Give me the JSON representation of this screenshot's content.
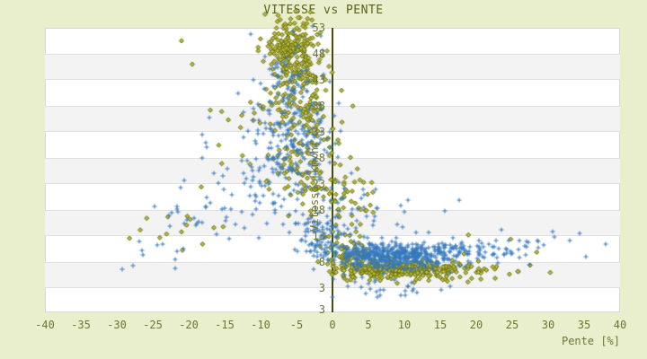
{
  "window": {
    "title": "VITESSE vs PENTE"
  },
  "chart_data": {
    "type": "scatter",
    "title": "VITESSE vs PENTE",
    "xlabel": "Pente [%]",
    "ylabel": "Vitesse [km/h]",
    "xlim": [
      -40,
      40
    ],
    "ylim": [
      -1.7,
      53
    ],
    "xticks": [
      -40,
      -35,
      -30,
      -25,
      -20,
      -15,
      -10,
      -5,
      0,
      5,
      10,
      15,
      20,
      25,
      30,
      35,
      40
    ],
    "yticks": [
      53,
      48,
      43,
      38,
      33,
      28,
      23,
      18,
      13,
      8,
      3
    ],
    "y_axis_end_label": "3",
    "grid": "alternating-horizontal-bands",
    "legend_position": "none",
    "colors": {
      "background": "#e9efcc",
      "plot_background": "#ffffff",
      "band": "#f3f3f4",
      "band_line": "#e1e1e1",
      "plot_border": "#d9d9d9",
      "axis_line": "#474d04",
      "tick_text": "#6f7433",
      "title_text": "#5c611b",
      "series_olive_stroke": "#676c06",
      "series_olive_fill": "#b7ba44",
      "series_blue": "#3579bd"
    },
    "seed": 20240613,
    "series": [
      {
        "name": "olive-diamonds",
        "marker": "diamond",
        "stroke": "#676c06",
        "fill": "#b7ba44",
        "clusters": [
          {
            "cx": -5.5,
            "cy": 49,
            "sx": 1.7,
            "sy": 2.3,
            "n": 170
          },
          {
            "cx": -5.2,
            "cy": 43.5,
            "sx": 2.2,
            "sy": 2.0,
            "n": 75
          },
          {
            "cx": -4.8,
            "cy": 37,
            "sx": 2.3,
            "sy": 2.6,
            "n": 85
          },
          {
            "cx": -4.2,
            "cy": 29.5,
            "sx": 2.6,
            "sy": 2.6,
            "n": 55
          },
          {
            "cx": -2.5,
            "cy": 23,
            "sx": 3.3,
            "sy": 2.6,
            "n": 48
          },
          {
            "cx": 2.2,
            "cy": 21,
            "sx": 2.6,
            "sy": 3.0,
            "n": 30
          },
          {
            "cx": -6,
            "cy": 55,
            "sx": 1.6,
            "sy": 1.1,
            "n": 13
          },
          {
            "cx": -12,
            "cy": 31,
            "sx": 2.8,
            "sy": 5.5,
            "n": 16
          },
          {
            "cx": 0.6,
            "cy": 12.5,
            "sx": 1.6,
            "sy": 2.4,
            "n": 26
          },
          {
            "cx": 3,
            "cy": 9,
            "sx": 2.2,
            "sy": 1.6,
            "n": 45
          },
          {
            "cx": 7,
            "cy": 6.6,
            "sx": 3.3,
            "sy": 0.9,
            "n": 240
          },
          {
            "cx": 13.5,
            "cy": 6.4,
            "sx": 3.0,
            "sy": 1.0,
            "n": 90
          },
          {
            "cx": 20,
            "cy": 6.8,
            "sx": 3.0,
            "sy": 1.2,
            "n": 28
          },
          {
            "cx": -24,
            "cy": 13.5,
            "sx": 2.2,
            "sy": 1.8,
            "n": 10
          }
        ],
        "points": [
          [
            -21,
            50.5
          ],
          [
            -19.5,
            46
          ],
          [
            -20.2,
            16.8
          ],
          [
            -19.8,
            16.2
          ],
          [
            -16.5,
            14.6
          ],
          [
            -15.2,
            14.8
          ],
          [
            25.8,
            6.2
          ],
          [
            27.5,
            7.4
          ],
          [
            30.3,
            6.0
          ],
          [
            24.8,
            12.4
          ],
          [
            18.9,
            13.2
          ],
          [
            28.4,
            9.9
          ]
        ]
      },
      {
        "name": "blue-crosses",
        "marker": "plus",
        "stroke": "#3579bd",
        "fill": "#3579bd",
        "clusters": [
          {
            "cx": -6,
            "cy": 31,
            "sx": 3.4,
            "sy": 6.8,
            "n": 240
          },
          {
            "cx": -5,
            "cy": 44.5,
            "sx": 2.2,
            "sy": 2.8,
            "n": 32
          },
          {
            "cx": -1.8,
            "cy": 13.5,
            "sx": 2.0,
            "sy": 2.6,
            "n": 85
          },
          {
            "cx": 7.5,
            "cy": 9.3,
            "sx": 3.8,
            "sy": 1.2,
            "n": 400
          },
          {
            "cx": 14.5,
            "cy": 9.6,
            "sx": 3.0,
            "sy": 1.3,
            "n": 95
          },
          {
            "cx": 21.5,
            "cy": 10.2,
            "sx": 3.0,
            "sy": 1.5,
            "n": 42
          },
          {
            "cx": -13,
            "cy": 22,
            "sx": 3.2,
            "sy": 4.2,
            "n": 30
          },
          {
            "cx": -19.5,
            "cy": 15.5,
            "sx": 3.8,
            "sy": 3.2,
            "n": 20
          },
          {
            "cx": 5,
            "cy": 17.5,
            "sx": 4.0,
            "sy": 3.0,
            "n": 45
          },
          {
            "cx": 8,
            "cy": 3.3,
            "sx": 4.0,
            "sy": 1.1,
            "n": 22
          },
          {
            "cx": 27.5,
            "cy": 10.6,
            "sx": 2.6,
            "sy": 1.6,
            "n": 12
          },
          {
            "cx": -26,
            "cy": 10.5,
            "sx": 2.6,
            "sy": 2.2,
            "n": 7
          }
        ],
        "points": [
          [
            38,
            11.5
          ],
          [
            -29.3,
            6.6
          ],
          [
            -27.8,
            7.3
          ],
          [
            0,
            1.3
          ],
          [
            33,
            12.1
          ],
          [
            30.6,
            13.9
          ],
          [
            35.2,
            9.0
          ],
          [
            9.5,
            1.6
          ],
          [
            6.2,
            1.2
          ],
          [
            11.8,
            2.1
          ],
          [
            23.5,
            14.2
          ],
          [
            -26.5,
            10.2
          ]
        ]
      }
    ]
  }
}
